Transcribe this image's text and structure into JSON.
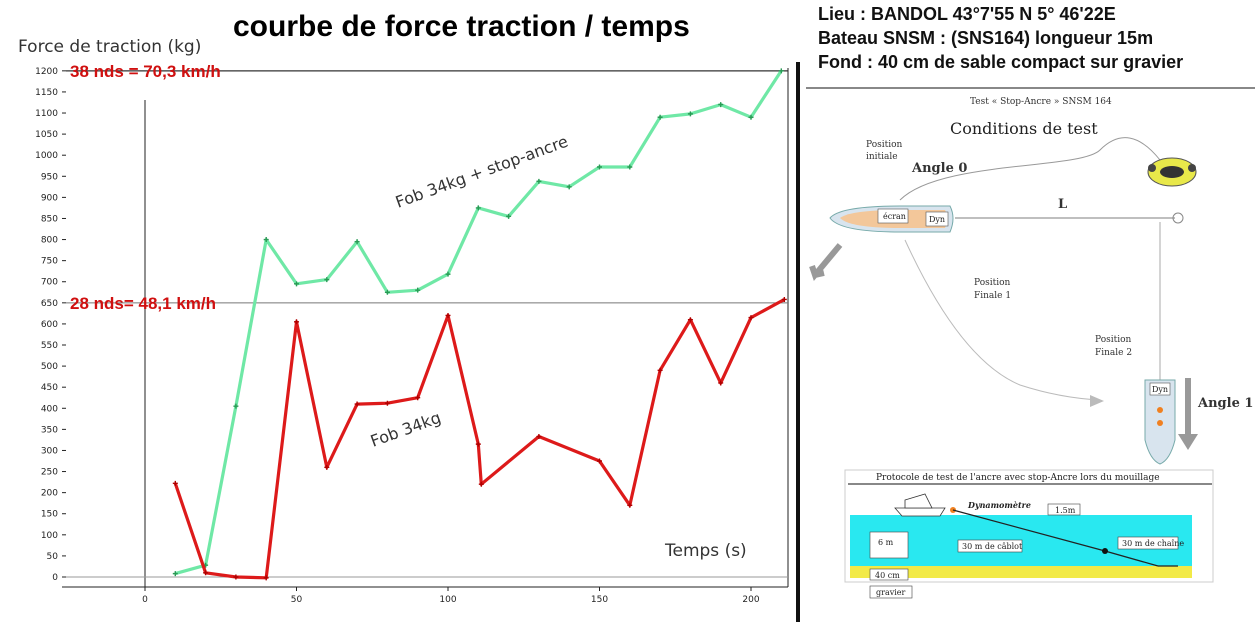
{
  "chart_data": {
    "type": "line",
    "title": "courbe de force traction / temps",
    "xlabel": "Temps (s)",
    "ylabel": "Force de traction (kg)",
    "xlim": [
      -30,
      212
    ],
    "ylim": [
      -20,
      1220
    ],
    "x_ticks": [
      0,
      50,
      100,
      150,
      200
    ],
    "y_ticks": [
      0,
      50,
      100,
      150,
      200,
      250,
      300,
      350,
      400,
      450,
      500,
      550,
      600,
      650,
      700,
      750,
      800,
      850,
      900,
      950,
      1000,
      1050,
      1100,
      1150,
      1200
    ],
    "grid": false,
    "series": [
      {
        "name": "Fob 34kg + stop-ancre",
        "color": "#6fe8a6",
        "x": [
          10,
          20,
          30,
          40,
          50,
          60,
          70,
          80,
          90,
          100,
          110,
          120,
          130,
          140,
          150,
          160,
          170,
          180,
          190,
          200,
          210
        ],
        "y": [
          8,
          28,
          405,
          800,
          695,
          705,
          795,
          675,
          680,
          718,
          875,
          855,
          938,
          925,
          972,
          972,
          1090,
          1098,
          1120,
          1090,
          1200
        ]
      },
      {
        "name": "Fob 34kg",
        "color": "#dd1a1a",
        "x": [
          10,
          20,
          30,
          40,
          50,
          60,
          70,
          80,
          90,
          100,
          110,
          111,
          130,
          150,
          160,
          170,
          180,
          190,
          200,
          211
        ],
        "y": [
          222,
          10,
          0,
          -2,
          605,
          260,
          410,
          412,
          425,
          620,
          315,
          220,
          333,
          275,
          170,
          490,
          610,
          460,
          615,
          658
        ]
      }
    ],
    "reference_lines": [
      {
        "y": 1200,
        "label": "38 nds = 70,3 km/h"
      },
      {
        "y": 650,
        "label": "28 nds= 48,1 km/h"
      }
    ]
  },
  "info": {
    "line1": "Lieu : BANDOL  43°7'55 N 5° 46'22E",
    "line2": "Bateau SNSM : (SNS164) longueur 15m",
    "line3": "Fond : 40 cm de sable compact sur gravier"
  },
  "diagram": {
    "header": "Test « Stop-Ancre » SNSM 164",
    "title": "Conditions de test",
    "position_initiale_1": "Position",
    "position_initiale_2": "initiale",
    "angle0": "Angle 0",
    "L": "L",
    "finale1_1": "Position",
    "finale1_2": "Finale 1",
    "finale2_1": "Position",
    "finale2_2": "Finale 2",
    "angle1": "Angle 1",
    "boat_ecran": "écran",
    "boat_dyn": "Dyn",
    "boat2_dyn": "Dyn"
  },
  "protocol": {
    "title": "Protocole de test de l'ancre avec  stop-Ancre lors du mouillage",
    "dynamometre": "Dynamomètre",
    "h1": "1.5m",
    "depth": "6 m",
    "cable": "30 m de câblot",
    "chain": "30 m de chaîne",
    "sand": "40 cm",
    "gravel": "gravier"
  }
}
